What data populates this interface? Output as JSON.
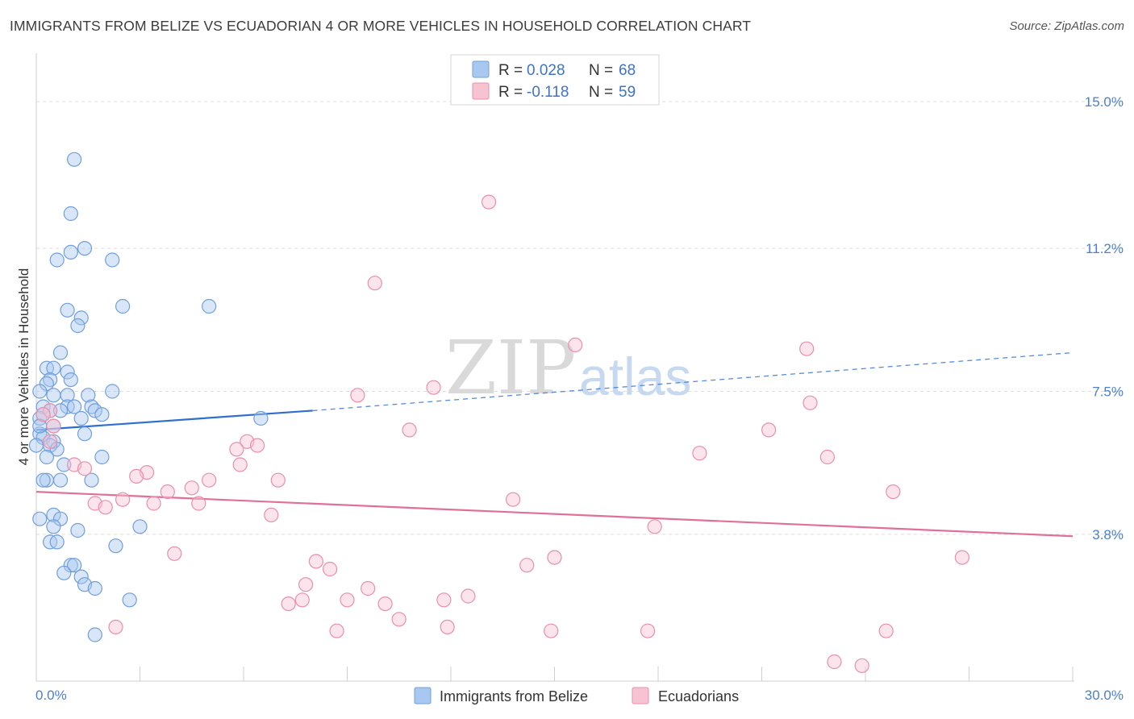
{
  "chart_data": {
    "type": "scatter",
    "title": "IMMIGRANTS FROM BELIZE VS ECUADORIAN 4 OR MORE VEHICLES IN HOUSEHOLD CORRELATION CHART",
    "source": "Source: ZipAtlas.com",
    "ylabel": "4 or more Vehicles in Household",
    "xlim": [
      0,
      30
    ],
    "ylim": [
      0,
      16
    ],
    "y_ticks": [
      {
        "value": 15.0,
        "label": "15.0%"
      },
      {
        "value": 11.2,
        "label": "11.2%"
      },
      {
        "value": 7.5,
        "label": "7.5%"
      },
      {
        "value": 3.8,
        "label": "3.8%"
      }
    ],
    "x_tick_labels": {
      "left": "0.0%",
      "right": "30.0%"
    },
    "x_minor_ticks": [
      3,
      6,
      9,
      12,
      15,
      18,
      21,
      24,
      27,
      30
    ],
    "legend": {
      "series": [
        {
          "r_label": "R =",
          "r_value": "0.028",
          "n_label": "N =",
          "n_value": "68"
        },
        {
          "r_label": "R =",
          "r_value": "-0.118",
          "n_label": "N =",
          "n_value": "59"
        }
      ]
    },
    "watermark": {
      "zip": "ZIP",
      "atlas": "atlas"
    },
    "series": [
      {
        "name": "Immigrants from Belize",
        "color": "#a9c8f0",
        "stroke": "#6f9fdc",
        "line_color": "#2e6fd0",
        "trend": {
          "solid": [
            [
              0,
              6.5
            ],
            [
              8,
              7.0
            ]
          ],
          "dashed": [
            [
              8,
              7.0
            ],
            [
              30,
              8.5
            ]
          ]
        },
        "points": [
          [
            1.1,
            13.5
          ],
          [
            1.0,
            12.1
          ],
          [
            0.6,
            10.9
          ],
          [
            1.0,
            11.1
          ],
          [
            1.4,
            11.2
          ],
          [
            2.2,
            10.9
          ],
          [
            2.5,
            9.7
          ],
          [
            5.0,
            9.7
          ],
          [
            0.9,
            9.6
          ],
          [
            1.3,
            9.4
          ],
          [
            1.2,
            9.2
          ],
          [
            0.7,
            8.5
          ],
          [
            0.3,
            8.1
          ],
          [
            0.5,
            8.1
          ],
          [
            0.9,
            8.0
          ],
          [
            1.0,
            7.8
          ],
          [
            0.4,
            7.8
          ],
          [
            0.3,
            7.7
          ],
          [
            0.1,
            7.5
          ],
          [
            2.2,
            7.5
          ],
          [
            0.5,
            7.4
          ],
          [
            0.9,
            7.4
          ],
          [
            1.5,
            7.4
          ],
          [
            1.6,
            7.1
          ],
          [
            1.7,
            7.0
          ],
          [
            1.9,
            6.9
          ],
          [
            0.9,
            7.1
          ],
          [
            1.1,
            7.1
          ],
          [
            0.2,
            7.1
          ],
          [
            0.4,
            7.0
          ],
          [
            0.7,
            7.0
          ],
          [
            0.1,
            6.8
          ],
          [
            0.2,
            6.9
          ],
          [
            1.3,
            6.8
          ],
          [
            6.5,
            6.8
          ],
          [
            0.5,
            6.6
          ],
          [
            0.1,
            6.4
          ],
          [
            1.4,
            6.4
          ],
          [
            0.2,
            6.3
          ],
          [
            0.5,
            6.2
          ],
          [
            0.4,
            6.1
          ],
          [
            0.6,
            6.0
          ],
          [
            0.3,
            5.8
          ],
          [
            1.9,
            5.8
          ],
          [
            0.8,
            5.6
          ],
          [
            0.3,
            5.2
          ],
          [
            0.7,
            5.2
          ],
          [
            1.6,
            5.2
          ],
          [
            0.1,
            4.2
          ],
          [
            0.5,
            4.3
          ],
          [
            0.7,
            4.2
          ],
          [
            3.0,
            4.0
          ],
          [
            0.5,
            4.0
          ],
          [
            1.2,
            3.9
          ],
          [
            0.4,
            3.6
          ],
          [
            0.6,
            3.6
          ],
          [
            2.3,
            3.5
          ],
          [
            1.0,
            3.0
          ],
          [
            1.1,
            3.0
          ],
          [
            0.8,
            2.8
          ],
          [
            1.3,
            2.7
          ],
          [
            1.4,
            2.5
          ],
          [
            1.7,
            2.4
          ],
          [
            2.7,
            2.1
          ],
          [
            1.7,
            1.2
          ],
          [
            0.0,
            6.1
          ],
          [
            0.2,
            5.2
          ],
          [
            0.1,
            6.6
          ]
        ]
      },
      {
        "name": "Ecuadorians",
        "color": "#f7c3d2",
        "stroke": "#ea8fab",
        "line_color": "#e0709a",
        "trend": {
          "solid": [
            [
              0,
              4.9
            ],
            [
              30,
              3.75
            ]
          ],
          "dashed": []
        },
        "points": [
          [
            13.1,
            12.4
          ],
          [
            9.8,
            10.3
          ],
          [
            15.6,
            8.7
          ],
          [
            22.3,
            8.6
          ],
          [
            9.3,
            7.4
          ],
          [
            11.5,
            7.6
          ],
          [
            22.4,
            7.2
          ],
          [
            10.8,
            6.5
          ],
          [
            21.2,
            6.5
          ],
          [
            0.4,
            7.0
          ],
          [
            0.5,
            6.6
          ],
          [
            6.1,
            6.2
          ],
          [
            5.8,
            6.0
          ],
          [
            6.4,
            6.1
          ],
          [
            19.2,
            5.9
          ],
          [
            22.9,
            5.8
          ],
          [
            5.9,
            5.6
          ],
          [
            1.1,
            5.6
          ],
          [
            1.4,
            5.5
          ],
          [
            3.2,
            5.4
          ],
          [
            2.9,
            5.3
          ],
          [
            7.0,
            5.2
          ],
          [
            5.0,
            5.2
          ],
          [
            4.5,
            5.0
          ],
          [
            3.8,
            4.9
          ],
          [
            24.8,
            4.9
          ],
          [
            13.8,
            4.7
          ],
          [
            2.5,
            4.7
          ],
          [
            4.7,
            4.6
          ],
          [
            3.4,
            4.6
          ],
          [
            1.7,
            4.6
          ],
          [
            2.0,
            4.5
          ],
          [
            6.8,
            4.3
          ],
          [
            17.9,
            4.0
          ],
          [
            4.0,
            3.3
          ],
          [
            26.8,
            3.2
          ],
          [
            8.1,
            3.1
          ],
          [
            15.0,
            3.2
          ],
          [
            14.2,
            3.0
          ],
          [
            8.5,
            2.9
          ],
          [
            7.8,
            2.5
          ],
          [
            9.6,
            2.4
          ],
          [
            7.3,
            2.0
          ],
          [
            7.7,
            2.1
          ],
          [
            9.0,
            2.1
          ],
          [
            11.8,
            2.1
          ],
          [
            12.5,
            2.2
          ],
          [
            10.1,
            2.0
          ],
          [
            10.5,
            1.6
          ],
          [
            2.3,
            1.4
          ],
          [
            11.9,
            1.4
          ],
          [
            8.7,
            1.3
          ],
          [
            14.9,
            1.3
          ],
          [
            17.7,
            1.3
          ],
          [
            24.6,
            1.3
          ],
          [
            23.1,
            0.5
          ],
          [
            23.9,
            0.4
          ],
          [
            0.2,
            6.9
          ],
          [
            0.4,
            6.2
          ]
        ]
      }
    ]
  }
}
